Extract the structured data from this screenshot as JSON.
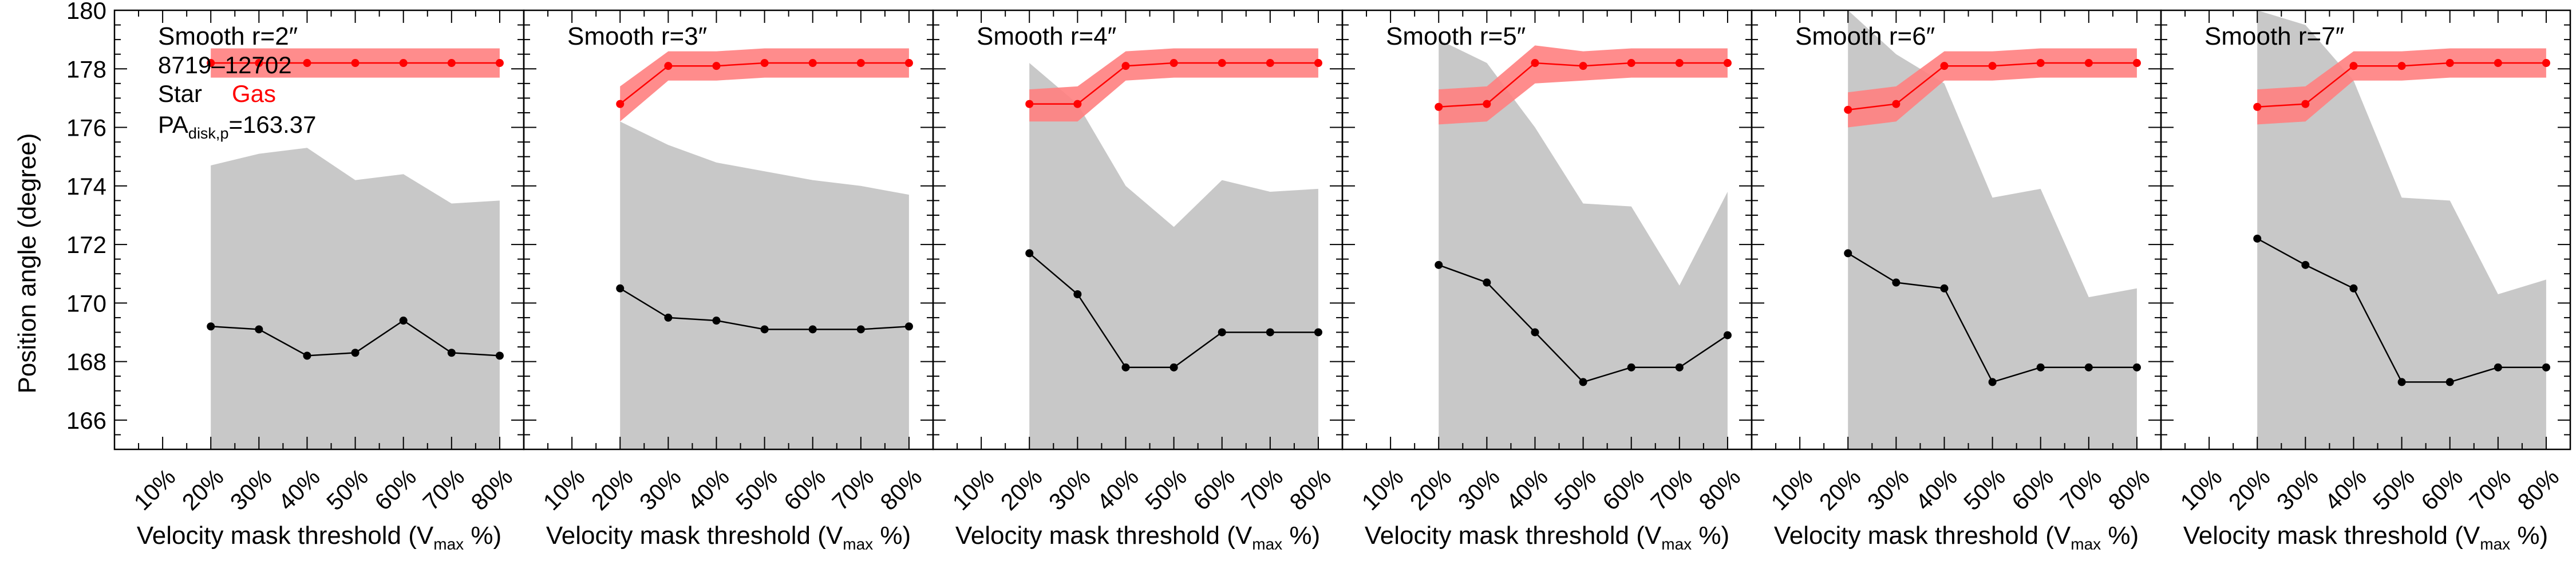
{
  "figure": {
    "ylabel": "Position angle (degree)",
    "xlabel_main": "Velocity mask threshold (V",
    "xlabel_sub": "max",
    "xlabel_end": " %)",
    "ylim": [
      165,
      180
    ],
    "yticks": [
      "166",
      "168",
      "170",
      "172",
      "174",
      "176",
      "178",
      "180"
    ],
    "xticks": [
      "10%",
      "20%",
      "30%",
      "40%",
      "50%",
      "60%",
      "70%",
      "80%"
    ],
    "legend": {
      "galaxy_id": "8719–12702",
      "star_label": "Star",
      "gas_label": "Gas",
      "pa_label_main": "PA",
      "pa_label_sub": "disk,p",
      "pa_value": "=163.37"
    },
    "colors": {
      "star_line": "#000000",
      "gas_line": "#ff0000",
      "gas_band": "#ff7f7f",
      "star_band": "#c8c8c8"
    }
  },
  "chart_data": [
    {
      "type": "line",
      "title": "Smooth r=2″",
      "x": [
        20,
        30,
        40,
        50,
        60,
        70,
        80
      ],
      "star": [
        169.2,
        169.1,
        168.2,
        168.3,
        169.4,
        168.3,
        168.2
      ],
      "star_upper": [
        174.7,
        175.1,
        175.3,
        174.2,
        174.4,
        173.4,
        173.5
      ],
      "star_lower": [
        165,
        165,
        165,
        165,
        165,
        165,
        165
      ],
      "gas": [
        178.2,
        178.2,
        178.2,
        178.2,
        178.2,
        178.2,
        178.2
      ],
      "gas_upper": [
        178.7,
        178.7,
        178.7,
        178.7,
        178.7,
        178.7,
        178.7
      ],
      "gas_lower": [
        177.7,
        177.7,
        177.7,
        177.7,
        177.7,
        177.7,
        177.7
      ]
    },
    {
      "type": "line",
      "title": "Smooth r=3″",
      "x": [
        20,
        30,
        40,
        50,
        60,
        70,
        80
      ],
      "star": [
        170.5,
        169.5,
        169.4,
        169.1,
        169.1,
        169.1,
        169.2
      ],
      "star_upper": [
        176.2,
        175.4,
        174.8,
        174.5,
        174.2,
        174.0,
        173.7
      ],
      "star_lower": [
        165,
        165,
        165,
        165,
        165,
        165,
        165
      ],
      "gas": [
        176.8,
        178.1,
        178.1,
        178.2,
        178.2,
        178.2,
        178.2
      ],
      "gas_upper": [
        177.4,
        178.6,
        178.6,
        178.7,
        178.7,
        178.7,
        178.7
      ],
      "gas_lower": [
        176.2,
        177.6,
        177.6,
        177.7,
        177.7,
        177.7,
        177.7
      ]
    },
    {
      "type": "line",
      "title": "Smooth r=4″",
      "x": [
        20,
        30,
        40,
        50,
        60,
        70,
        80
      ],
      "star": [
        171.7,
        170.3,
        167.8,
        167.8,
        169.0,
        169.0,
        169.0
      ],
      "star_upper": [
        178.2,
        176.8,
        174.0,
        172.6,
        174.2,
        173.8,
        173.9
      ],
      "star_lower": [
        165,
        165,
        165,
        165,
        165,
        165,
        165
      ],
      "gas": [
        176.8,
        176.8,
        178.1,
        178.2,
        178.2,
        178.2,
        178.2
      ],
      "gas_upper": [
        177.3,
        177.4,
        178.6,
        178.7,
        178.7,
        178.7,
        178.7
      ],
      "gas_lower": [
        176.2,
        176.2,
        177.6,
        177.7,
        177.7,
        177.7,
        177.7
      ]
    },
    {
      "type": "line",
      "title": "Smooth r=5″",
      "x": [
        20,
        30,
        40,
        50,
        60,
        70,
        80
      ],
      "star": [
        171.3,
        170.7,
        169.0,
        167.3,
        167.8,
        167.8,
        168.9
      ],
      "star_upper": [
        179.0,
        178.2,
        176.0,
        173.4,
        173.3,
        170.6,
        173.8
      ],
      "star_lower": [
        165,
        165,
        165,
        165,
        165,
        165,
        165
      ],
      "gas": [
        176.7,
        176.8,
        178.2,
        178.1,
        178.2,
        178.2,
        178.2
      ],
      "gas_upper": [
        177.3,
        177.4,
        178.8,
        178.6,
        178.7,
        178.7,
        178.7
      ],
      "gas_lower": [
        176.1,
        176.2,
        177.5,
        177.6,
        177.7,
        177.7,
        177.7
      ]
    },
    {
      "type": "line",
      "title": "Smooth r=6″",
      "x": [
        20,
        30,
        40,
        50,
        60,
        70,
        80
      ],
      "star": [
        171.7,
        170.7,
        170.5,
        167.3,
        167.8,
        167.8,
        167.8
      ],
      "star_upper": [
        180.0,
        178.5,
        177.5,
        173.6,
        173.9,
        170.2,
        170.5
      ],
      "star_lower": [
        165,
        165,
        165,
        165,
        165,
        165,
        165
      ],
      "gas": [
        176.6,
        176.8,
        178.1,
        178.1,
        178.2,
        178.2,
        178.2
      ],
      "gas_upper": [
        177.2,
        177.4,
        178.6,
        178.6,
        178.7,
        178.7,
        178.7
      ],
      "gas_lower": [
        176.0,
        176.2,
        177.6,
        177.6,
        177.7,
        177.7,
        177.7
      ]
    },
    {
      "type": "line",
      "title": "Smooth r=7″",
      "x": [
        20,
        30,
        40,
        50,
        60,
        70,
        80
      ],
      "star": [
        172.2,
        171.3,
        170.5,
        167.3,
        167.3,
        167.8,
        167.8
      ],
      "star_upper": [
        180.0,
        179.5,
        177.6,
        173.6,
        173.5,
        170.3,
        170.8
      ],
      "star_lower": [
        165,
        165,
        165,
        165,
        165,
        165,
        165
      ],
      "gas": [
        176.7,
        176.8,
        178.1,
        178.1,
        178.2,
        178.2,
        178.2
      ],
      "gas_upper": [
        177.3,
        177.4,
        178.6,
        178.6,
        178.7,
        178.7,
        178.7
      ],
      "gas_lower": [
        176.1,
        176.2,
        177.6,
        177.6,
        177.7,
        177.7,
        177.7
      ]
    }
  ]
}
